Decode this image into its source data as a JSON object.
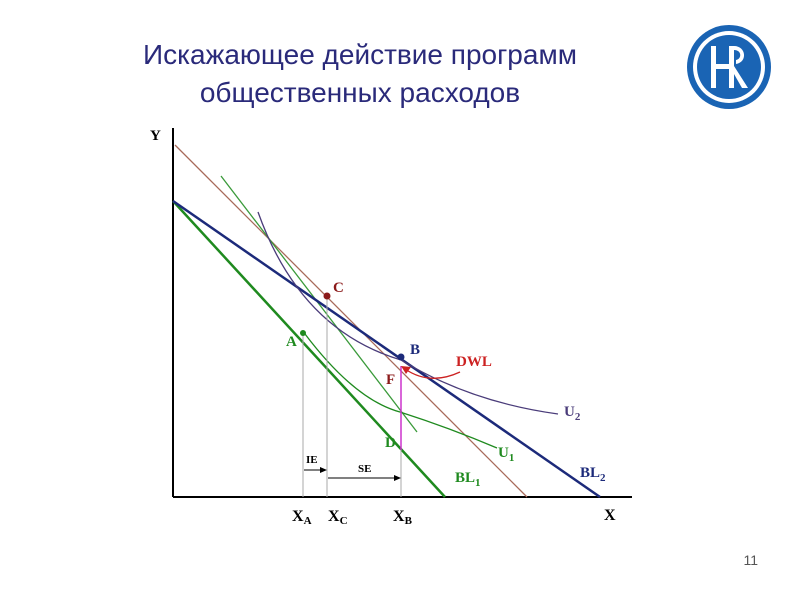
{
  "slide": {
    "title_line1": "Искажающее действие программ",
    "title_line2": "общественных расходов",
    "page_number": "11",
    "logo": "hse-university-logo"
  },
  "colors": {
    "title": "#2a2a7a",
    "bl1": "#1f8a1f",
    "bl2": "#1c2a7a",
    "u2": "#4a3c7a",
    "brown_line": "#a86a5a",
    "green_steep": "#3a9a3a",
    "dwl": "#cc2222",
    "segment_fd": "#cc33cc",
    "logo_blue": "#1a64b4"
  },
  "diagram": {
    "y_axis_label": "Y",
    "x_axis_label": "X",
    "points": {
      "A": "A",
      "B": "B",
      "C": "C",
      "D": "D",
      "F": "F"
    },
    "curves": {
      "bl1": {
        "name": "BL",
        "sub": "1"
      },
      "bl2": {
        "name": "BL",
        "sub": "2"
      },
      "u1": {
        "name": "U",
        "sub": "1"
      },
      "u2": {
        "name": "U",
        "sub": "2"
      }
    },
    "dwl_label": "DWL",
    "ie_label": "IE",
    "se_label": "SE",
    "x_ticks": [
      {
        "main": "X",
        "sub": "A"
      },
      {
        "main": "X",
        "sub": "C"
      },
      {
        "main": "X",
        "sub": "B"
      }
    ]
  }
}
